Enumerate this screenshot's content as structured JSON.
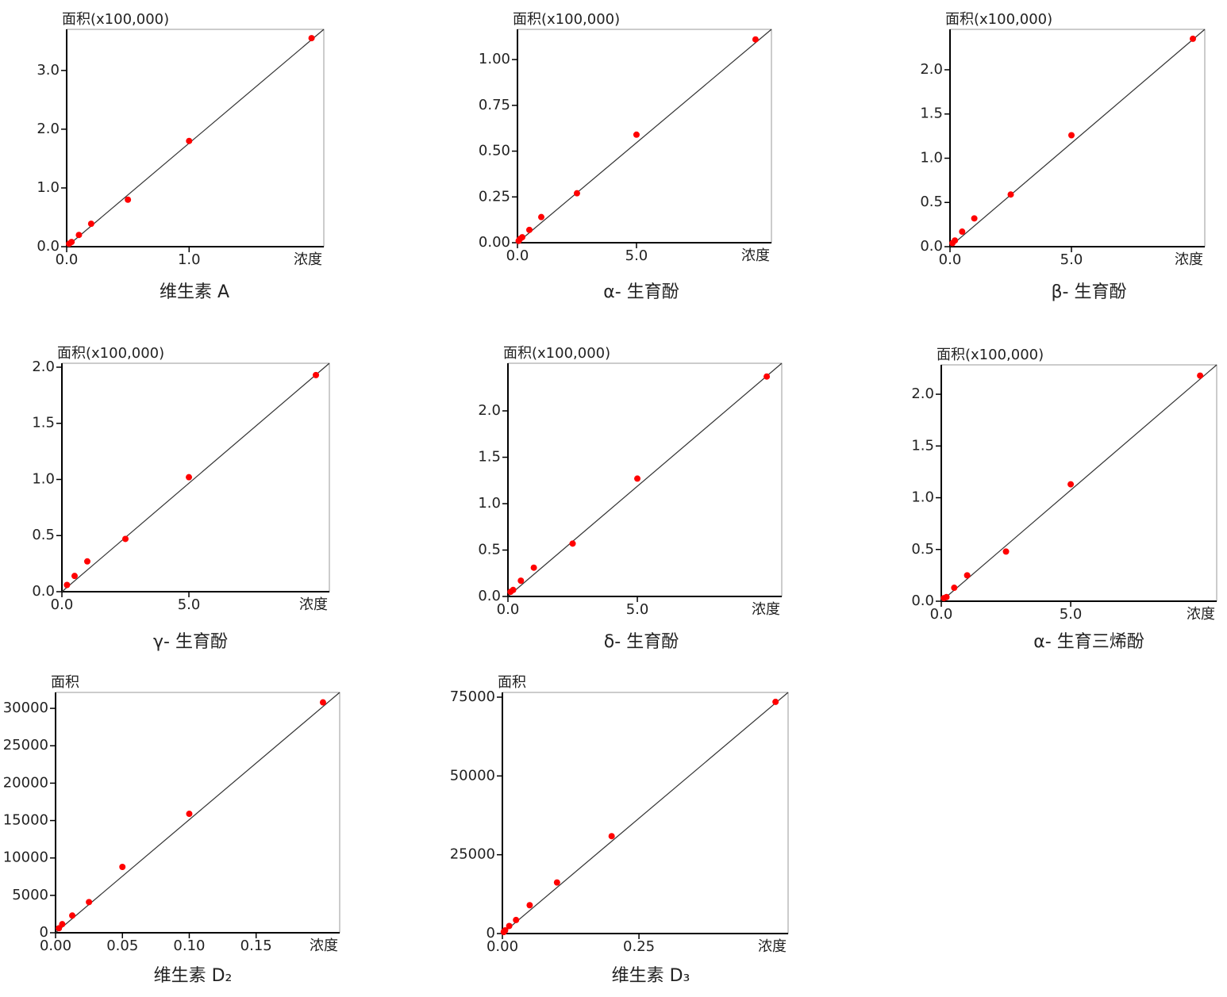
{
  "chart_data": [
    {
      "type": "scatter",
      "title": "维生素 A",
      "y_label": "面积(x100,000)",
      "x_label": "浓度",
      "color": "#ff0000",
      "trendline": true,
      "x": [
        0.02,
        0.04,
        0.1,
        0.2,
        0.5,
        1.0,
        2.0
      ],
      "y": [
        0.05,
        0.08,
        0.2,
        0.39,
        0.8,
        1.8,
        3.55
      ],
      "xlim": [
        0,
        2.1
      ],
      "ylim": [
        0,
        3.7
      ],
      "xticks": [
        {
          "value": 0,
          "label": "0.0"
        },
        {
          "value": 1,
          "label": "1.0"
        }
      ],
      "yticks": [
        {
          "value": 0,
          "label": "0.0"
        },
        {
          "value": 1,
          "label": "1.0"
        },
        {
          "value": 2,
          "label": "2.0"
        },
        {
          "value": 3,
          "label": "3.0"
        }
      ]
    },
    {
      "type": "scatter",
      "title": "α- 生育酚",
      "y_label": "面积(x100,000)",
      "x_label": "浓度",
      "color": "#ff0000",
      "trendline": true,
      "x": [
        0.05,
        0.1,
        0.2,
        0.5,
        1.0,
        2.5,
        5.0,
        10.0
      ],
      "y": [
        0.01,
        0.02,
        0.03,
        0.07,
        0.14,
        0.27,
        0.59,
        1.11
      ],
      "xlim": [
        0,
        10.67
      ],
      "ylim": [
        0,
        1.165
      ],
      "xticks": [
        {
          "value": 0,
          "label": "0.0"
        },
        {
          "value": 5,
          "label": "5.0"
        }
      ],
      "yticks": [
        {
          "value": 0,
          "label": "0.00"
        },
        {
          "value": 0.25,
          "label": "0.25"
        },
        {
          "value": 0.5,
          "label": "0.50"
        },
        {
          "value": 0.75,
          "label": "0.75"
        },
        {
          "value": 1,
          "label": "1.00"
        }
      ]
    },
    {
      "type": "scatter",
      "title": "β- 生育酚",
      "y_label": "面积(x100,000)",
      "x_label": "浓度",
      "color": "#ff0000",
      "trendline": true,
      "x": [
        0.1,
        0.2,
        0.5,
        1.0,
        2.5,
        5.0,
        10.0
      ],
      "y": [
        0.04,
        0.07,
        0.17,
        0.32,
        0.59,
        1.26,
        2.35
      ],
      "xlim": [
        0,
        10.49
      ],
      "ylim": [
        0,
        2.457
      ],
      "xticks": [
        {
          "value": 0,
          "label": "0.0"
        },
        {
          "value": 5,
          "label": "5.0"
        }
      ],
      "yticks": [
        {
          "value": 0,
          "label": "0.0"
        },
        {
          "value": 0.5,
          "label": "0.5"
        },
        {
          "value": 1,
          "label": "1.0"
        },
        {
          "value": 1.5,
          "label": "1.5"
        },
        {
          "value": 2,
          "label": "2.0"
        }
      ]
    },
    {
      "type": "scatter",
      "title": "γ- 生育酚",
      "y_label": "面积(x100,000)",
      "x_label": "浓度",
      "color": "#ff0000",
      "trendline": true,
      "x": [
        0.2,
        0.5,
        1.0,
        2.5,
        5.0,
        10.0
      ],
      "y": [
        0.06,
        0.14,
        0.27,
        0.47,
        1.02,
        1.93
      ],
      "xlim": [
        0,
        10.53
      ],
      "ylim": [
        0,
        2.035
      ],
      "xticks": [
        {
          "value": 0,
          "label": "0.0"
        },
        {
          "value": 5,
          "label": "5.0"
        }
      ],
      "yticks": [
        {
          "value": 0,
          "label": "0.0"
        },
        {
          "value": 0.5,
          "label": "0.5"
        },
        {
          "value": 1,
          "label": "1.0"
        },
        {
          "value": 1.5,
          "label": "1.5"
        },
        {
          "value": 2,
          "label": "2.0"
        }
      ]
    },
    {
      "type": "scatter",
      "title": "δ- 生育酚",
      "y_label": "面积(x100,000)",
      "x_label": "浓度",
      "color": "#ff0000",
      "trendline": true,
      "x": [
        0.1,
        0.2,
        0.5,
        1.0,
        2.5,
        5.0,
        10.0
      ],
      "y": [
        0.05,
        0.07,
        0.17,
        0.31,
        0.57,
        1.27,
        2.37
      ],
      "xlim": [
        0,
        10.58
      ],
      "ylim": [
        0,
        2.513
      ],
      "xticks": [
        {
          "value": 0,
          "label": "0.0"
        },
        {
          "value": 5,
          "label": "5.0"
        }
      ],
      "yticks": [
        {
          "value": 0,
          "label": "0.0"
        },
        {
          "value": 0.5,
          "label": "0.5"
        },
        {
          "value": 1,
          "label": "1.0"
        },
        {
          "value": 1.5,
          "label": "1.5"
        },
        {
          "value": 2,
          "label": "2.0"
        }
      ]
    },
    {
      "type": "scatter",
      "title": "α- 生育三烯酚",
      "y_label": "面积(x100,000)",
      "x_label": "浓度",
      "color": "#ff0000",
      "trendline": true,
      "x": [
        0.1,
        0.2,
        0.5,
        1.0,
        2.5,
        5.0,
        10.0
      ],
      "y": [
        0.03,
        0.04,
        0.13,
        0.25,
        0.48,
        1.13,
        2.18
      ],
      "xlim": [
        0,
        10.64
      ],
      "ylim": [
        0,
        2.284
      ],
      "xticks": [
        {
          "value": 0,
          "label": "0.0"
        },
        {
          "value": 5,
          "label": "5.0"
        }
      ],
      "yticks": [
        {
          "value": 0,
          "label": "0.0"
        },
        {
          "value": 0.5,
          "label": "0.5"
        },
        {
          "value": 1,
          "label": "1.0"
        },
        {
          "value": 1.5,
          "label": "1.5"
        },
        {
          "value": 2,
          "label": "2.0"
        }
      ]
    },
    {
      "type": "scatter",
      "title": "维生素 D₂",
      "y_label": "面积",
      "x_label": "浓度",
      "color": "#ff0000",
      "trendline": true,
      "x": [
        0.0025,
        0.005,
        0.0125,
        0.025,
        0.05,
        0.1,
        0.2
      ],
      "y": [
        600,
        1150,
        2300,
        4100,
        8800,
        15900,
        30800
      ],
      "xlim": [
        0,
        0.2125
      ],
      "ylim": [
        0,
        32130
      ],
      "xticks": [
        {
          "value": 0,
          "label": "0.00"
        },
        0.05,
        {
          "value": 0.1,
          "label": "0.10"
        },
        0.15
      ],
      "yticks": [
        0,
        5000,
        10000,
        15000,
        20000,
        25000,
        30000
      ]
    },
    {
      "type": "scatter",
      "title": "维生素 D₃",
      "y_label": "面积",
      "x_label": "浓度",
      "color": "#ff0000",
      "trendline": true,
      "x": [
        0.0025,
        0.005,
        0.0125,
        0.025,
        0.05,
        0.1,
        0.2,
        0.5
      ],
      "y": [
        500,
        1000,
        2400,
        4300,
        9000,
        16200,
        30900,
        73500
      ],
      "xlim": [
        0,
        0.523
      ],
      "ylim": [
        0,
        76500
      ],
      "xticks": [
        {
          "value": 0,
          "label": "0.00"
        },
        0.25
      ],
      "yticks": [
        0,
        25000,
        50000,
        75000
      ]
    }
  ]
}
